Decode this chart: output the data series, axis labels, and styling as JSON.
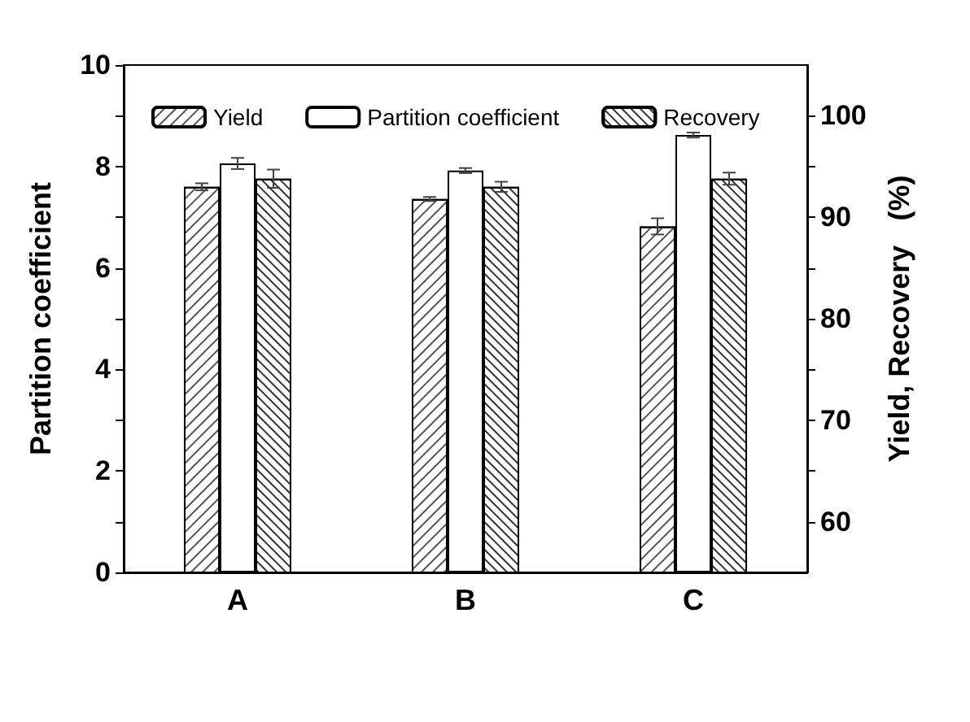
{
  "chart_data": {
    "type": "bar",
    "ylabel": "Partition coefficient",
    "y2label": "Yield, Recovery   (%)",
    "categories": [
      "A",
      "B",
      "C"
    ],
    "series": [
      {
        "name": "Yield",
        "color": "#ffffff",
        "axis": "y2",
        "values": [
          93.0,
          91.8,
          89.1
        ],
        "errors": [
          0.35,
          0.2,
          0.8
        ]
      },
      {
        "name": "Partition coefficient",
        "color": "#ffffff",
        "values": [
          8.06,
          7.92,
          8.62
        ],
        "errors": [
          0.11,
          0.05,
          0.05
        ]
      },
      {
        "name": "Recovery",
        "color": "#ffffff",
        "axis": "y2",
        "values": [
          93.8,
          93.0,
          93.8
        ],
        "errors": [
          0.9,
          0.5,
          0.6
        ]
      }
    ],
    "ylim": [
      0,
      10
    ],
    "yticks": [
      0,
      {
        "value": 1,
        "label": null
      },
      2,
      {
        "value": 3,
        "label": null
      },
      4,
      {
        "value": 5,
        "label": null
      },
      6,
      {
        "value": 7,
        "label": null
      },
      8,
      {
        "value": 9,
        "label": null
      },
      10
    ],
    "y2lim": [
      55,
      105
    ],
    "y2ticks": [
      60,
      {
        "value": 65,
        "label": null
      },
      70,
      {
        "value": 75,
        "label": null
      },
      80,
      {
        "value": 85,
        "label": null
      },
      90,
      {
        "value": 95,
        "label": null
      },
      100
    ],
    "legend": "top",
    "grid": false
  }
}
